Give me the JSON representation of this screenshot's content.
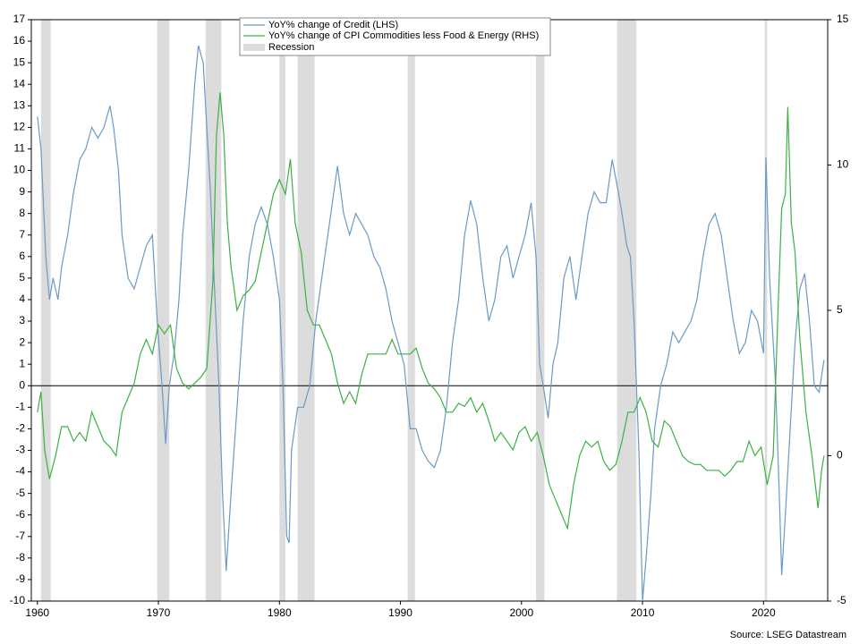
{
  "chart_data": {
    "type": "line",
    "source": "Source: LSEG Datastream",
    "recession_label": "Recession",
    "recession_color": "#dcdcdc",
    "recessions": [
      [
        1960.3,
        1961.1
      ],
      [
        1969.9,
        1970.9
      ],
      [
        1973.9,
        1975.2
      ],
      [
        1980.0,
        1980.5
      ],
      [
        1981.5,
        1982.9
      ],
      [
        1990.6,
        1991.2
      ],
      [
        2001.2,
        2001.9
      ],
      [
        2007.9,
        2009.5
      ],
      [
        2020.1,
        2020.3
      ]
    ],
    "xlim": [
      1959.5,
      2025.3
    ],
    "xticks": [
      1960,
      1970,
      1980,
      1990,
      2000,
      2010,
      2020
    ],
    "ylim": [
      -10,
      17
    ],
    "yticks": [
      -10,
      -9,
      -8,
      -7,
      -6,
      -5,
      -4,
      -3,
      -2,
      -1,
      0,
      1,
      2,
      3,
      4,
      5,
      6,
      7,
      8,
      9,
      10,
      11,
      12,
      13,
      14,
      15,
      16,
      17
    ],
    "y2lim": [
      -5,
      15
    ],
    "y2ticks": [
      -5,
      0,
      5,
      10,
      15
    ],
    "series": [
      {
        "name": "YoY% change of Credit (LHS)",
        "color": "#6b9ac4",
        "axis": "y",
        "x": [
          1960,
          1960.3,
          1960.7,
          1961,
          1961.3,
          1961.7,
          1962,
          1962.5,
          1963,
          1963.5,
          1964,
          1964.5,
          1965,
          1965.5,
          1966,
          1966.3,
          1966.7,
          1967,
          1967.5,
          1968,
          1968.5,
          1969,
          1969.5,
          1969.9,
          1970.3,
          1970.6,
          1970.9,
          1971.3,
          1971.7,
          1972,
          1972.5,
          1973,
          1973.3,
          1973.7,
          1974,
          1974.3,
          1974.6,
          1975,
          1975.3,
          1975.6,
          1976,
          1976.5,
          1977,
          1977.5,
          1978,
          1978.5,
          1979,
          1979.5,
          1980,
          1980.3,
          1980.6,
          1980.8,
          1981,
          1981.5,
          1982,
          1982.5,
          1983,
          1983.5,
          1984,
          1984.5,
          1984.8,
          1985.3,
          1985.8,
          1986.3,
          1986.8,
          1987.3,
          1987.8,
          1988.3,
          1988.8,
          1989.3,
          1989.8,
          1990.3,
          1990.8,
          1991.3,
          1991.8,
          1992.3,
          1992.8,
          1993.3,
          1993.8,
          1994.3,
          1994.8,
          1995.3,
          1995.8,
          1996.3,
          1996.8,
          1997.3,
          1997.8,
          1998.3,
          1998.8,
          1999.3,
          1999.8,
          2000.3,
          2000.8,
          2001.2,
          2001.5,
          2001.8,
          2002.2,
          2002.6,
          2003,
          2003.5,
          2004,
          2004.5,
          2005,
          2005.5,
          2006,
          2006.5,
          2007,
          2007.5,
          2008,
          2008.3,
          2008.7,
          2009,
          2009.3,
          2009.7,
          2010,
          2010.3,
          2010.7,
          2011,
          2011.5,
          2012,
          2012.5,
          2013,
          2013.5,
          2014,
          2014.5,
          2015,
          2015.5,
          2016,
          2016.5,
          2017,
          2017.5,
          2018,
          2018.5,
          2019,
          2019.5,
          2020,
          2020.2,
          2020.5,
          2021,
          2021.3,
          2021.5,
          2021.8,
          2022.2,
          2022.6,
          2023,
          2023.4,
          2023.8,
          2024.2,
          2024.6,
          2025
        ],
        "values": [
          12.5,
          11,
          6,
          4,
          5,
          4,
          5.5,
          7,
          9,
          10.5,
          11,
          12,
          11.5,
          12,
          13,
          12,
          10,
          7,
          5,
          4.5,
          5.5,
          6.5,
          7,
          3,
          0,
          -2.7,
          0,
          1.5,
          4,
          7,
          10,
          14,
          15.8,
          15,
          12,
          9,
          5,
          0,
          -5,
          -8.6,
          -5,
          -1,
          3,
          6,
          7.5,
          8.3,
          7.5,
          6,
          4,
          0,
          -7,
          -7.3,
          -3,
          -1,
          -1,
          0,
          3,
          5,
          7,
          9,
          10.2,
          8,
          7,
          8,
          7.5,
          7,
          6,
          5.5,
          4.5,
          3,
          2,
          1,
          -2,
          -2,
          -3,
          -3.5,
          -3.8,
          -3,
          -1,
          2,
          4,
          7,
          8.6,
          7.5,
          5,
          3,
          4,
          6,
          6.5,
          5,
          6,
          7,
          8.5,
          6,
          1,
          0,
          -1.5,
          1,
          2,
          5,
          6,
          4,
          6,
          8,
          9,
          8.5,
          8.5,
          10.5,
          9,
          8,
          6.5,
          6,
          3,
          -3,
          -10,
          -8,
          -5,
          -2,
          0,
          1,
          2.5,
          2,
          2.5,
          3,
          4,
          6,
          7.5,
          8,
          7,
          5,
          3,
          1.5,
          2,
          3.5,
          3,
          1.5,
          10.6,
          5,
          0,
          -5,
          -8.8,
          -6,
          -2,
          2,
          4.5,
          5.2,
          3,
          0,
          -0.3,
          1.2
        ]
      },
      {
        "name": "YoY% change of CPI Commodities less Food & Energy (RHS)",
        "color": "#3cb043",
        "axis": "y2",
        "x": [
          1960,
          1960.3,
          1960.6,
          1961,
          1961.5,
          1962,
          1962.5,
          1963,
          1963.5,
          1964,
          1964.5,
          1965,
          1965.5,
          1966,
          1966.5,
          1967,
          1967.5,
          1968,
          1968.5,
          1969,
          1969.5,
          1970,
          1970.5,
          1971,
          1971.5,
          1972,
          1972.5,
          1973,
          1973.5,
          1974,
          1974.5,
          1974.8,
          1975.1,
          1975.4,
          1975.7,
          1976,
          1976.5,
          1977,
          1977.5,
          1978,
          1978.5,
          1979,
          1979.5,
          1980,
          1980.5,
          1980.9,
          1981.3,
          1981.8,
          1982.3,
          1982.8,
          1983.3,
          1983.8,
          1984.3,
          1984.8,
          1985.3,
          1985.8,
          1986.3,
          1986.8,
          1987.3,
          1987.8,
          1988.3,
          1988.8,
          1989.3,
          1989.8,
          1990.3,
          1990.8,
          1991.3,
          1991.8,
          1992.3,
          1992.8,
          1993.3,
          1993.8,
          1994.3,
          1994.8,
          1995.3,
          1995.8,
          1996.3,
          1996.8,
          1997.3,
          1997.8,
          1998.3,
          1998.8,
          1999.3,
          1999.8,
          2000.3,
          2000.8,
          2001.3,
          2001.8,
          2002.3,
          2002.8,
          2003.3,
          2003.8,
          2004.3,
          2004.8,
          2005.3,
          2005.8,
          2006.3,
          2006.8,
          2007.3,
          2007.8,
          2008.3,
          2008.8,
          2009.3,
          2009.8,
          2010.3,
          2010.8,
          2011.3,
          2011.8,
          2012.3,
          2012.8,
          2013.3,
          2013.8,
          2014.3,
          2014.8,
          2015.3,
          2015.8,
          2016.3,
          2016.8,
          2017.3,
          2017.8,
          2018.3,
          2018.8,
          2019.3,
          2019.8,
          2020.3,
          2020.8,
          2021.2,
          2021.5,
          2021.8,
          2022,
          2022.3,
          2022.6,
          2023,
          2023.5,
          2024,
          2024.5,
          2024.8,
          2025
        ],
        "values": [
          1.5,
          2.2,
          0.2,
          -0.8,
          0,
          1,
          1,
          0.5,
          0.8,
          0.5,
          1.5,
          1,
          0.5,
          0.3,
          0,
          1.5,
          2,
          2.5,
          3.5,
          4,
          3.5,
          4.5,
          4.2,
          4.5,
          3,
          2.5,
          2.3,
          2.5,
          2.7,
          3,
          6,
          11,
          12.5,
          11,
          8,
          6.5,
          5,
          5.5,
          5.7,
          6,
          7,
          8,
          9,
          9.5,
          9,
          10.2,
          8,
          7,
          5,
          4.5,
          4.5,
          4,
          3.5,
          2.5,
          1.8,
          2.2,
          1.8,
          2.8,
          3.5,
          3.5,
          3.5,
          3.5,
          4,
          3.5,
          3.5,
          3.5,
          3.7,
          3,
          2.5,
          2.3,
          2,
          1.5,
          1.5,
          1.8,
          1.7,
          2,
          1.5,
          1.8,
          1.2,
          0.5,
          0.8,
          0.5,
          0.2,
          0.8,
          1,
          0.5,
          0.8,
          0,
          -1,
          -1.5,
          -2,
          -2.5,
          -1,
          0,
          0.5,
          0.3,
          0.5,
          -0.2,
          -0.5,
          -0.3,
          0.5,
          1.5,
          1.5,
          2,
          1.5,
          0.5,
          0.3,
          1.2,
          1,
          0.5,
          0,
          -0.2,
          -0.3,
          -0.3,
          -0.5,
          -0.5,
          -0.5,
          -0.7,
          -0.5,
          -0.2,
          -0.2,
          0.5,
          0,
          0.3,
          -1,
          0,
          5,
          8.5,
          9,
          12,
          8,
          7,
          4,
          1.5,
          0,
          -1.8,
          -0.5,
          0
        ]
      }
    ]
  }
}
